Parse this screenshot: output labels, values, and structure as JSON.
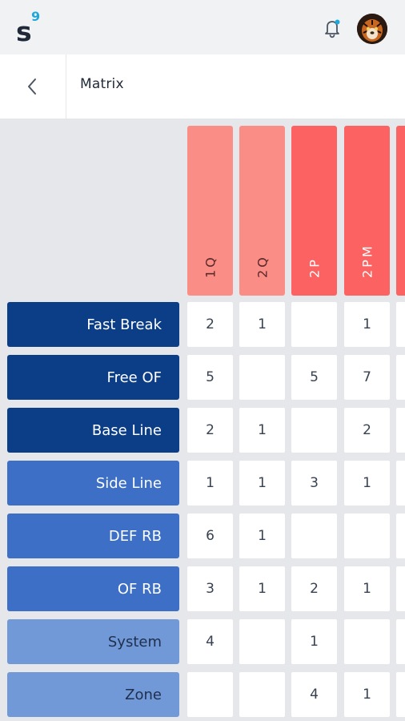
{
  "header": {
    "logo_letter": "s",
    "logo_superscript": "9"
  },
  "nav": {
    "title": "Matrix"
  },
  "icons": {
    "back": "chevron-left-icon",
    "bell": "bell-icon",
    "avatar": "tiger-avatar"
  },
  "colors": {
    "dark_blue": "#0c3e87",
    "mid_blue": "#3c6fc5",
    "light_blue": "#7199d7",
    "header_light_red": "#fa8e86",
    "header_red": "#fc6262",
    "notification_dot": "#1ea7d9"
  },
  "matrix": {
    "columns": [
      {
        "label": "1Q",
        "tone": "light"
      },
      {
        "label": "2Q",
        "tone": "light"
      },
      {
        "label": "2P",
        "tone": "strong"
      },
      {
        "label": "2PM",
        "tone": "strong"
      },
      {
        "label": "",
        "tone": "strong"
      }
    ],
    "rows": [
      {
        "label": "Fast Break",
        "tone": "dark",
        "cells": [
          "2",
          "1",
          "",
          "1",
          ""
        ]
      },
      {
        "label": "Free OF",
        "tone": "dark",
        "cells": [
          "5",
          "",
          "5",
          "7",
          ""
        ]
      },
      {
        "label": "Base Line",
        "tone": "dark",
        "cells": [
          "2",
          "1",
          "",
          "2",
          ""
        ]
      },
      {
        "label": "Side Line",
        "tone": "mid",
        "cells": [
          "1",
          "1",
          "3",
          "1",
          ""
        ]
      },
      {
        "label": "DEF RB",
        "tone": "mid",
        "cells": [
          "6",
          "1",
          "",
          "",
          ""
        ]
      },
      {
        "label": "OF RB",
        "tone": "mid",
        "cells": [
          "3",
          "1",
          "2",
          "1",
          ""
        ]
      },
      {
        "label": "System",
        "tone": "light",
        "cells": [
          "4",
          "",
          "1",
          "",
          ""
        ]
      },
      {
        "label": "Zone",
        "tone": "light",
        "cells": [
          "",
          "",
          "4",
          "1",
          ""
        ]
      }
    ]
  }
}
